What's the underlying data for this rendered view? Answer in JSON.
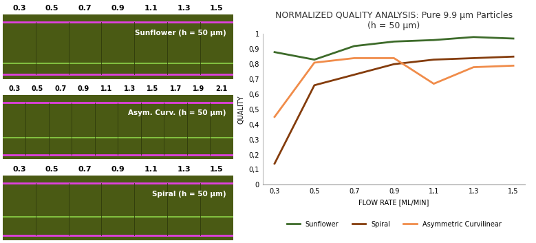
{
  "chart_data": {
    "type": "line",
    "title": "NORMALIZED QUALITY ANALYSIS: Pure 9.9 µm Particles\n(h = 50 µm)",
    "x_label": "FLOW RATE [ML/MIN]",
    "y_label": "QUALITY",
    "categories": [
      "0,3",
      "0,5",
      "0,7",
      "0,9",
      "1,1",
      "1,3",
      "1,5"
    ],
    "ylim": [
      0,
      1
    ],
    "yticks": [
      0,
      {
        "value": 0.1,
        "label": "0,1"
      },
      {
        "value": 0.2,
        "label": "0,2"
      },
      {
        "value": 0.3,
        "label": "0,3"
      },
      {
        "value": 0.4,
        "label": "0,4"
      },
      {
        "value": 0.5,
        "label": "0,5"
      },
      {
        "value": 0.6,
        "label": "0,6"
      },
      {
        "value": 0.7,
        "label": "0,7"
      },
      {
        "value": 0.8,
        "label": "0,8"
      },
      {
        "value": 0.9,
        "label": "0,9"
      },
      1
    ],
    "grid": false,
    "legend": "bottom",
    "series": [
      {
        "name": "Sunflower",
        "color": "#3d6b2a",
        "values": [
          0.88,
          0.83,
          0.92,
          0.95,
          0.96,
          0.98,
          0.97
        ]
      },
      {
        "name": "Spiral",
        "color": "#843c0c",
        "values": [
          0.14,
          0.66,
          0.73,
          0.8,
          0.83,
          0.84,
          0.85
        ]
      },
      {
        "name": "Asymmetric Curvilinear",
        "color": "#f08c4a",
        "values": [
          0.45,
          0.81,
          0.84,
          0.84,
          0.67,
          0.78,
          0.79
        ]
      }
    ]
  },
  "image_panels": [
    {
      "label": "Sunflower (h = 50 µm)",
      "flow_labels": [
        "0.3",
        "0.5",
        "0.7",
        "0.9",
        "1.1",
        "1.3",
        "1.5"
      ]
    },
    {
      "label": "Asym. Curv. (h = 50 µm)",
      "flow_labels": [
        "0.3",
        "0.5",
        "0.7",
        "0.9",
        "1.1",
        "1.3",
        "1.5",
        "1.7",
        "1.9",
        "2.1"
      ]
    },
    {
      "label": "Spiral (h = 50 µm)",
      "flow_labels": [
        "0.3",
        "0.5",
        "0.7",
        "0.9",
        "1.1",
        "1.3",
        "1.5"
      ]
    }
  ]
}
